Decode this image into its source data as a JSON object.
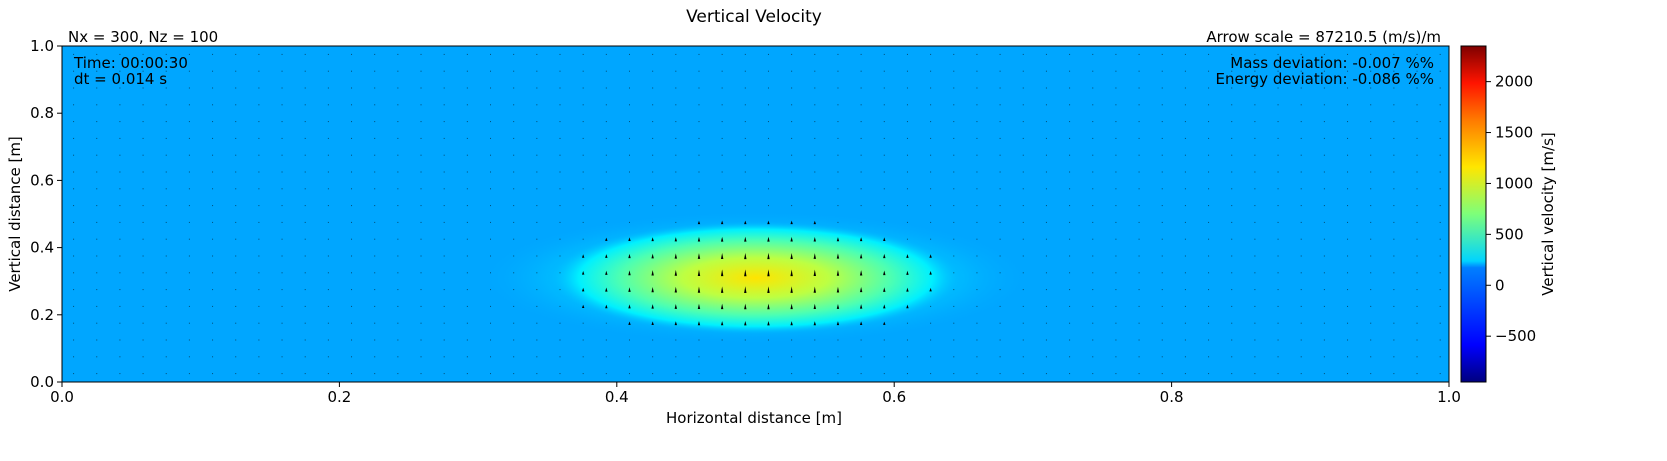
{
  "chart_data": {
    "type": "heatmap",
    "title": "Vertical Velocity",
    "xlabel": "Horizontal distance [m]",
    "ylabel": "Vertical distance [m]",
    "xlim": [
      0.0,
      1.0
    ],
    "ylim": [
      0.0,
      1.0
    ],
    "x_ticks": [
      "0.0",
      "0.2",
      "0.4",
      "0.6",
      "0.8",
      "1.0"
    ],
    "y_ticks": [
      "0.0",
      "0.2",
      "0.4",
      "0.6",
      "0.8",
      "1.0"
    ],
    "grid_label": "Nx = 300, Nz = 100",
    "arrow_scale_label": "Arrow scale = 87210.5 (m/s)/m",
    "time_label": "Time: 00:00:30",
    "dt_label": "dt = 0.014 s",
    "mass_label": "Mass deviation: -0.007 %%",
    "energy_label": "Energy deviation: -0.086 %%",
    "colormap": "jet",
    "colorbar": {
      "label": "Vertical velocity [m/s]",
      "range": [
        -950,
        2350
      ],
      "ticks": [
        "−500",
        "0",
        "500",
        "1000",
        "1500",
        "2000"
      ],
      "tick_values": [
        -500,
        0,
        500,
        1000,
        1500,
        2000
      ]
    },
    "field": {
      "background_value": 0,
      "blob": {
        "center_x": 0.5,
        "center_z": 0.31,
        "peak_value": 1200,
        "half_width_x": 0.15,
        "half_width_z": 0.17,
        "halo_half_width_x": 0.2,
        "halo_half_width_z": 0.2
      }
    },
    "quiver": {
      "dx": 0.0167,
      "dz": 0.05,
      "direction": "up"
    }
  }
}
